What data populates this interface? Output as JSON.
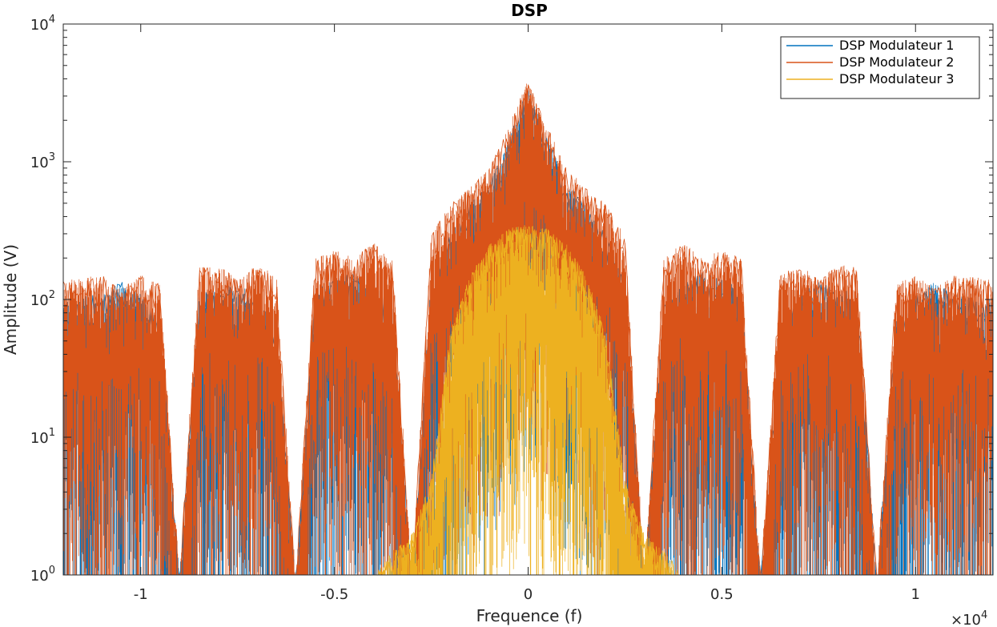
{
  "chart_data": {
    "type": "line",
    "title": "DSP",
    "xlabel": "Frequence (f)",
    "ylabel": "Amplitude (V)",
    "x_exponent_label": "×10",
    "x_exponent_power": "4",
    "xlim": [
      -12000,
      12000
    ],
    "ylim": [
      1,
      10000
    ],
    "yscale": "log",
    "grid": false,
    "legend_position": "top-right",
    "x_ticks": [
      {
        "value": -10000,
        "label": "-1"
      },
      {
        "value": -5000,
        "label": "-0.5"
      },
      {
        "value": 0,
        "label": "0"
      },
      {
        "value": 5000,
        "label": "0.5"
      },
      {
        "value": 10000,
        "label": "1"
      }
    ],
    "y_ticks": [
      {
        "value": 1,
        "base": "10",
        "exp": "0"
      },
      {
        "value": 10,
        "base": "10",
        "exp": "1"
      },
      {
        "value": 100,
        "base": "10",
        "exp": "2"
      },
      {
        "value": 1000,
        "base": "10",
        "exp": "3"
      },
      {
        "value": 10000,
        "base": "10",
        "exp": "4"
      }
    ],
    "series": [
      {
        "name": "DSP Modulateur 1",
        "color": "#0072BD",
        "envelope": {
          "x": [
            -12000,
            -11000,
            -10500,
            -10000,
            -9500,
            -9000,
            -8500,
            -8000,
            -7500,
            -7000,
            -6500,
            -6000,
            -5500,
            -5000,
            -4500,
            -4000,
            -3500,
            -3000,
            -2500,
            -2000,
            -1500,
            -1000,
            -500,
            0,
            500,
            1000,
            1500,
            2000,
            2500,
            3000,
            3500,
            4000,
            4500,
            5000,
            5500,
            6000,
            6500,
            7000,
            7500,
            8000,
            8500,
            9000,
            9500,
            10000,
            10500,
            11000,
            12000
          ],
          "y": [
            100,
            110,
            135,
            110,
            70,
            1,
            110,
            120,
            135,
            110,
            60,
            1,
            120,
            140,
            160,
            130,
            90,
            1,
            150,
            300,
            500,
            700,
            1500,
            3500,
            1500,
            700,
            500,
            300,
            150,
            1,
            90,
            130,
            160,
            140,
            120,
            1,
            60,
            110,
            135,
            120,
            110,
            1,
            70,
            110,
            135,
            110,
            100
          ]
        }
      },
      {
        "name": "DSP Modulateur 2",
        "color": "#D95319",
        "envelope": {
          "x": [
            -12000,
            -11000,
            -10500,
            -10000,
            -9500,
            -9000,
            -8500,
            -8000,
            -7500,
            -7000,
            -6500,
            -6000,
            -5500,
            -5000,
            -4500,
            -4000,
            -3500,
            -3000,
            -2500,
            -2000,
            -1500,
            -1000,
            -500,
            0,
            500,
            1000,
            1500,
            2000,
            2500,
            3000,
            3500,
            4000,
            4500,
            5000,
            5500,
            6000,
            6500,
            7000,
            7500,
            8000,
            8500,
            9000,
            9500,
            10000,
            10500,
            11000,
            12000
          ],
          "y": [
            140,
            150,
            120,
            150,
            130,
            1,
            170,
            180,
            140,
            180,
            150,
            1,
            200,
            230,
            200,
            260,
            200,
            1,
            300,
            500,
            650,
            900,
            1800,
            4000,
            1800,
            900,
            650,
            500,
            300,
            1,
            200,
            260,
            200,
            230,
            200,
            1,
            150,
            180,
            140,
            180,
            170,
            1,
            130,
            150,
            120,
            150,
            140
          ]
        }
      },
      {
        "name": "DSP Modulateur 3",
        "color": "#EDB120",
        "envelope": {
          "x": [
            -4000,
            -3500,
            -3000,
            -2500,
            -2000,
            -1500,
            -1000,
            -500,
            0,
            500,
            1000,
            1500,
            2000,
            2500,
            3000,
            3500,
            4000
          ],
          "y": [
            1,
            1.5,
            2,
            5,
            60,
            150,
            250,
            330,
            350,
            330,
            250,
            150,
            60,
            5,
            2,
            1.5,
            1
          ]
        }
      }
    ]
  }
}
